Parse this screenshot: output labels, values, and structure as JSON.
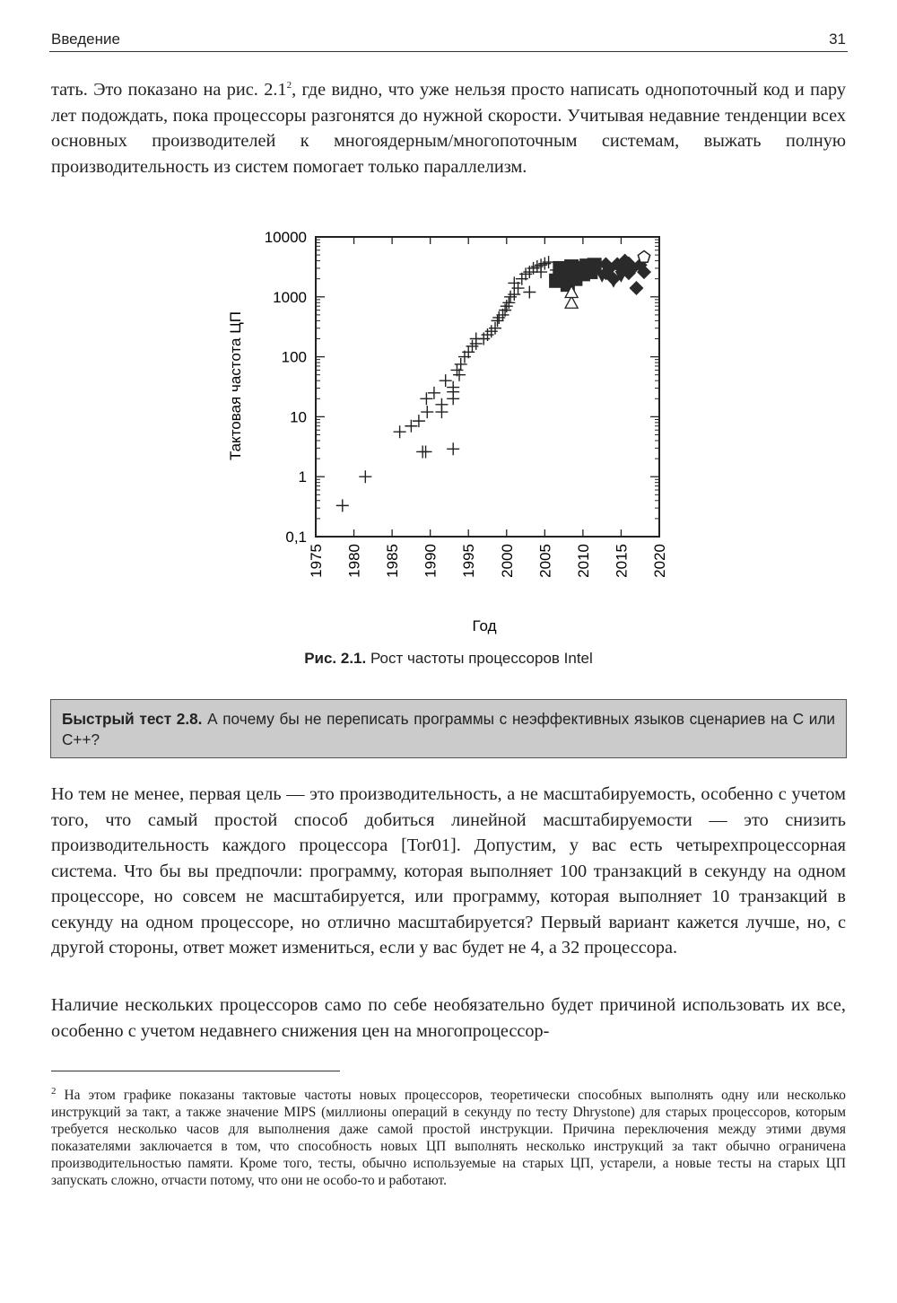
{
  "header": {
    "section": "Введение",
    "page_number": "31"
  },
  "paragraph1": {
    "before_ref": "тать. Это показано на рис. 2.1",
    "footnote_ref": "2",
    "after_ref": ", где видно, что уже нельзя просто написать однопоточный код и пару лет подождать, пока процессоры разгонятся до нужной скорости. Учитывая недавние тенденции всех основных производителей к многоядерным/многопоточным системам, выжать полную производительность из систем помогает только параллелизм."
  },
  "figure": {
    "caption_label": "Рис. 2.1.",
    "caption_text": " Рост частоты процессоров Intel"
  },
  "chart_data": {
    "type": "scatter",
    "xlabel": "Год",
    "ylabel": "Тактовая частота ЦП",
    "xlim": [
      1975,
      2020
    ],
    "ylim": [
      0.1,
      10000
    ],
    "y_scale": "log",
    "x_ticks": [
      "1975",
      "1980",
      "1985",
      "1990",
      "1995",
      "2000",
      "2005",
      "2010",
      "2015",
      "2020"
    ],
    "y_ticks": [
      "0,1",
      "1",
      "10",
      "100",
      "1000",
      "10000"
    ],
    "grid": false,
    "series": [
      {
        "marker": "plus",
        "points": [
          [
            1978.5,
            0.33
          ],
          [
            1981.5,
            1
          ],
          [
            1986,
            5.6
          ],
          [
            1987.5,
            7
          ],
          [
            1988.5,
            8.5
          ],
          [
            1989,
            2.6
          ],
          [
            1989.4,
            2.6
          ],
          [
            1989.6,
            12
          ],
          [
            1989.5,
            20
          ],
          [
            1990.5,
            25
          ],
          [
            1991.5,
            12
          ],
          [
            1991.5,
            16
          ],
          [
            1992,
            40
          ],
          [
            1993,
            20
          ],
          [
            1993,
            26
          ],
          [
            1993,
            31
          ],
          [
            1993,
            2.9
          ],
          [
            1993.5,
            60
          ],
          [
            1993.8,
            50
          ],
          [
            1994,
            75
          ],
          [
            1994.5,
            100
          ],
          [
            1995,
            120
          ],
          [
            1995.5,
            150
          ],
          [
            1996,
            166
          ],
          [
            1996,
            200
          ],
          [
            1997,
            200
          ],
          [
            1997.5,
            233
          ],
          [
            1998,
            266
          ],
          [
            1998.5,
            300
          ],
          [
            1998.8,
            400
          ],
          [
            1999,
            450
          ],
          [
            1999.5,
            500
          ],
          [
            1999.8,
            600
          ],
          [
            2000,
            700
          ],
          [
            2000.3,
            800
          ],
          [
            2000.5,
            1000
          ],
          [
            2001,
            1100
          ],
          [
            2001.5,
            1400
          ],
          [
            2001,
            1700
          ],
          [
            2002,
            2000
          ],
          [
            2002.5,
            2400
          ],
          [
            2003,
            2600
          ],
          [
            2003.5,
            3000
          ],
          [
            2004,
            3200
          ],
          [
            2004.5,
            3400
          ],
          [
            2005,
            3600
          ],
          [
            2005.5,
            3800
          ],
          [
            2004.5,
            2600
          ],
          [
            2003,
            1200
          ],
          [
            2006.5,
            2800
          ]
        ]
      },
      {
        "marker": "square",
        "points": [
          [
            2006.5,
            1860
          ],
          [
            2007,
            2000
          ],
          [
            2007.5,
            2400
          ],
          [
            2007,
            3000
          ],
          [
            2008,
            1600
          ],
          [
            2008,
            2700
          ],
          [
            2008.5,
            3200
          ],
          [
            2009,
            2000
          ],
          [
            2009,
            2800
          ],
          [
            2009.5,
            3000
          ],
          [
            2010,
            2400
          ],
          [
            2010.5,
            3300
          ],
          [
            2011,
            2600
          ],
          [
            2011.5,
            3400
          ]
        ]
      },
      {
        "marker": "triangle",
        "points": [
          [
            2008.5,
            800
          ],
          [
            2008.5,
            1200
          ]
        ]
      },
      {
        "marker": "diamond",
        "points": [
          [
            2013,
            2500
          ],
          [
            2013,
            3500
          ],
          [
            2013.5,
            3000
          ],
          [
            2014,
            2000
          ],
          [
            2014.5,
            3500
          ],
          [
            2015,
            3000
          ],
          [
            2015.5,
            4000
          ],
          [
            2016,
            2500
          ],
          [
            2016,
            3600
          ],
          [
            2016.5,
            3000
          ],
          [
            2017,
            1400
          ],
          [
            2017.5,
            3400
          ],
          [
            2018,
            2600
          ]
        ]
      },
      {
        "marker": "triangle-down",
        "points": [
          [
            2012.5,
            2200
          ],
          [
            2014,
            1800
          ],
          [
            2015,
            2200
          ]
        ]
      },
      {
        "marker": "pentagon",
        "points": [
          [
            2018,
            4600
          ]
        ]
      }
    ]
  },
  "quiz": {
    "label": "Быстрый тест 2.8.",
    "text": " А почему бы не переписать программы с неэффективных языков сценариев на C или C++?"
  },
  "paragraph2": "Но тем не менее, первая цель — это производительность, а не масштабируемость, особенно с учетом того, что самый простой способ добиться линейной масштабируемости — это снизить производительность каждого процессора [Tor01]. Допустим, у вас есть четырехпроцессорная система. Что бы вы предпочли: программу, которая выполняет 100 транзакций в секунду на одном процессоре, но совсем не масштабируется, или программу, которая выполняет 10 транзакций в секунду на одном процессоре, но отлично масштабируется? Первый вариант кажется лучше, но, с другой стороны, ответ может измениться, если у вас будет не 4, а 32 процессора.",
  "paragraph3": "Наличие нескольких процессоров само по себе необязательно будет причиной использовать их все, особенно с учетом недавнего снижения цен на многопроцессор-",
  "footnote": {
    "number": "2",
    "text": " На этом графике показаны тактовые частоты новых процессоров, теоретически способных выполнять одну или несколько инструкций за такт, а также значение MIPS (миллионы операций в секунду по тесту Dhrystone) для старых процессоров, которым требуется несколько часов для выполнения даже самой простой инструкции. Причина переключения между этими двумя показателями заключается в том, что способность новых ЦП выполнять несколько инструкций за такт обычно ограничена производительностью памяти. Кроме того, тесты, обычно используемые на старых ЦП, устарели, а новые тесты на старых ЦП запускать сложно, отчасти потому, что они не особо-то и работают."
  }
}
